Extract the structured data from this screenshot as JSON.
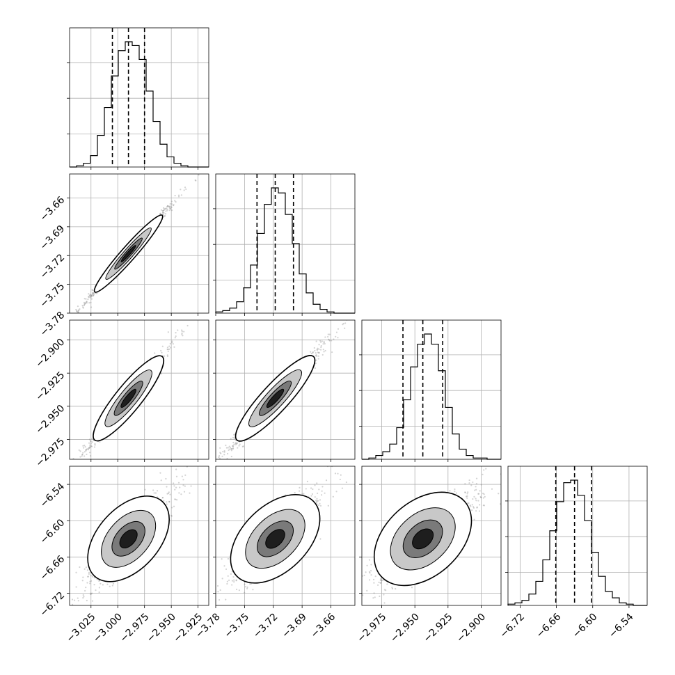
{
  "chart_data": {
    "type": "corner",
    "grid": true,
    "axes": [
      {
        "range": [
          -3.045,
          -2.915
        ],
        "ticks": [
          -3.025,
          -3.0,
          -2.975,
          -2.95,
          -2.925
        ],
        "tick_labels": [
          "−3.025",
          "−3.000",
          "−2.975",
          "−2.950",
          "−2.925"
        ]
      },
      {
        "range": [
          -3.78,
          -3.635
        ],
        "ticks": [
          -3.78,
          -3.75,
          -3.72,
          -3.69,
          -3.66
        ],
        "tick_labels": [
          "−3.78",
          "−3.75",
          "−3.72",
          "−3.69",
          "−3.66"
        ]
      },
      {
        "range": [
          -2.99,
          -2.885
        ],
        "ticks": [
          -2.975,
          -2.95,
          -2.925,
          -2.9
        ],
        "tick_labels": [
          "−2.975",
          "−2.950",
          "−2.925",
          "−2.900"
        ]
      },
      {
        "range": [
          -6.74,
          -6.51
        ],
        "ticks": [
          -6.72,
          -6.66,
          -6.6,
          -6.54
        ],
        "tick_labels": [
          "−6.72",
          "−6.66",
          "−6.60",
          "−6.54"
        ]
      }
    ],
    "quantiles": [
      [
        -3.005,
        -2.99,
        -2.975
      ],
      [
        -3.737,
        -3.718,
        -3.699
      ],
      [
        -2.959,
        -2.944,
        -2.929
      ],
      [
        -6.661,
        -6.63,
        -6.602
      ]
    ],
    "histograms": [
      [
        0,
        1,
        3,
        9,
        25,
        47,
        72,
        92,
        99,
        96,
        85,
        60,
        36,
        18,
        8,
        3,
        1,
        0,
        0,
        0
      ],
      [
        1,
        2,
        4,
        9,
        20,
        38,
        63,
        86,
        99,
        95,
        78,
        55,
        31,
        16,
        7,
        3,
        1,
        0,
        0,
        0
      ],
      [
        0,
        1,
        3,
        6,
        12,
        25,
        47,
        73,
        91,
        99,
        91,
        70,
        41,
        20,
        8,
        3,
        1,
        1,
        0,
        0
      ],
      [
        1,
        2,
        4,
        9,
        19,
        36,
        59,
        82,
        97,
        99,
        87,
        67,
        42,
        23,
        11,
        6,
        2,
        1,
        0,
        0
      ]
    ],
    "correlations": [
      [
        1,
        0.995,
        0.985,
        0.9
      ],
      [
        0.995,
        1,
        0.985,
        0.9
      ],
      [
        0.985,
        0.985,
        1,
        0.88
      ],
      [
        0.9,
        0.9,
        0.88,
        1
      ]
    ],
    "colors": {
      "density": "#000000",
      "points": "#808080",
      "grid": "#b0b0b0",
      "frame": "#000000"
    }
  }
}
